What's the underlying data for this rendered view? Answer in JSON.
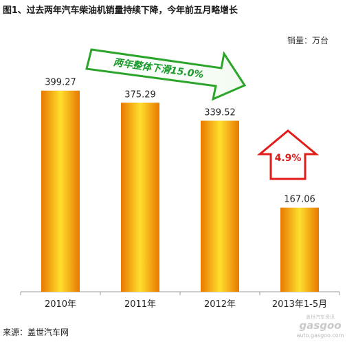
{
  "chart_data": {
    "type": "bar",
    "title": "图1、过去两年汽车柴油机销量持续下降，今年前五月略增长",
    "unit": "销量：万台",
    "categories": [
      "2010年",
      "2011年",
      "2012年",
      "2013年1-5月"
    ],
    "values": [
      399.27,
      375.29,
      339.52,
      167.06
    ],
    "value_labels": [
      "399.27",
      "375.29",
      "339.52",
      "167.06"
    ],
    "ylim": [
      0,
      450
    ],
    "grid": false,
    "annotations": [
      {
        "text": "两年整体下滑15.0%",
        "color": "#1a9a2a",
        "shape": "green-arrow-right"
      },
      {
        "text": "4.9%",
        "color": "#e21b1b",
        "shape": "red-arrow-up"
      }
    ],
    "bar_colors": {
      "edge": "#e77800",
      "center": "#ffdf2e"
    }
  },
  "source": "来源：盖世汽车网",
  "watermark": {
    "brand": "gasgoo",
    "tagline": "盖世汽车资讯",
    "url": "auto.gasgoo.com"
  }
}
